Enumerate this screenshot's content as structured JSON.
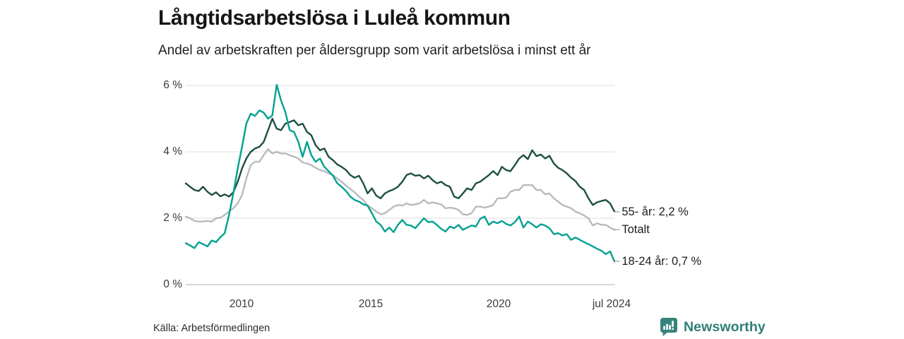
{
  "header": {
    "title": "Långtidsarbetslösa i Luleå kommun",
    "subtitle": "Andel av arbetskraften per åldersgrupp som varit arbetslösa i minst ett år"
  },
  "chart_data": {
    "type": "line",
    "title": "Långtidsarbetslösa i Luleå kommun",
    "subtitle": "Andel av arbetskraften per åldersgrupp som varit arbetslösa i minst ett år",
    "unit": "%",
    "ylim": [
      0,
      6
    ],
    "grid": true,
    "legend_position": "right-of-line-ends",
    "x_ticks": [
      {
        "label": "2010"
      },
      {
        "label": "2015"
      },
      {
        "label": "2020"
      },
      {
        "label": "jul 2024"
      }
    ],
    "y_ticks": [
      {
        "value": 0,
        "label": "0 %"
      },
      {
        "value": 2,
        "label": "2 %"
      },
      {
        "value": 4,
        "label": "4 %"
      },
      {
        "value": 6,
        "label": "6 %"
      }
    ],
    "series": [
      {
        "name": "Totalt",
        "color": "#b7bbbf",
        "end_label": "Totalt",
        "values": [
          2.05,
          2.0,
          1.92,
          1.9,
          1.9,
          1.92,
          1.9,
          2.0,
          2.02,
          2.1,
          2.2,
          2.3,
          2.45,
          2.7,
          3.2,
          3.6,
          3.7,
          3.7,
          3.9,
          4.08,
          3.95,
          4.0,
          3.95,
          3.95,
          3.9,
          3.85,
          3.8,
          3.68,
          3.65,
          3.6,
          3.52,
          3.45,
          3.42,
          3.35,
          3.3,
          3.2,
          3.1,
          2.98,
          2.88,
          2.78,
          2.65,
          2.55,
          2.38,
          2.3,
          2.2,
          2.12,
          2.15,
          2.25,
          2.35,
          2.4,
          2.38,
          2.45,
          2.4,
          2.42,
          2.45,
          2.55,
          2.45,
          2.48,
          2.45,
          2.42,
          2.3,
          2.32,
          2.3,
          2.25,
          2.12,
          2.1,
          2.15,
          2.35,
          2.35,
          2.32,
          2.35,
          2.4,
          2.6,
          2.6,
          2.62,
          2.8,
          2.85,
          2.85,
          3.0,
          3.0,
          3.0,
          2.85,
          2.85,
          2.72,
          2.75,
          2.6,
          2.5,
          2.4,
          2.35,
          2.3,
          2.2,
          2.15,
          2.08,
          2.0,
          1.78,
          1.85,
          1.8,
          1.8,
          1.72,
          1.65
        ]
      },
      {
        "name": "55- år",
        "color": "#1d4f42",
        "end_label": "55- år: 2,2 %",
        "end_value": 2.2,
        "values": [
          3.05,
          2.95,
          2.85,
          2.82,
          2.95,
          2.8,
          2.7,
          2.78,
          2.66,
          2.72,
          2.65,
          2.78,
          3.1,
          3.5,
          3.8,
          4.0,
          4.1,
          4.15,
          4.3,
          4.65,
          5.0,
          4.7,
          4.65,
          4.85,
          4.9,
          4.95,
          4.8,
          4.85,
          4.6,
          4.5,
          4.2,
          4.05,
          4.1,
          3.85,
          3.75,
          3.62,
          3.55,
          3.45,
          3.3,
          3.22,
          3.28,
          3.05,
          2.75,
          2.9,
          2.68,
          2.6,
          2.75,
          2.82,
          2.87,
          2.95,
          3.1,
          3.3,
          3.35,
          3.28,
          3.3,
          3.2,
          3.28,
          3.15,
          3.05,
          3.1,
          3.0,
          2.95,
          2.65,
          2.6,
          2.75,
          2.9,
          2.85,
          3.05,
          3.1,
          3.2,
          3.3,
          3.42,
          3.3,
          3.55,
          3.45,
          3.42,
          3.6,
          3.8,
          3.9,
          3.78,
          4.05,
          3.87,
          3.92,
          3.8,
          3.88,
          3.65,
          3.52,
          3.45,
          3.35,
          3.22,
          3.12,
          2.95,
          2.85,
          2.6,
          2.4,
          2.48,
          2.52,
          2.55,
          2.45,
          2.2
        ]
      },
      {
        "name": "18-24 år",
        "color": "#00a18f",
        "end_label": "18-24 år: 0,7 %",
        "end_value": 0.7,
        "values": [
          1.25,
          1.18,
          1.1,
          1.28,
          1.22,
          1.15,
          1.33,
          1.28,
          1.43,
          1.55,
          2.1,
          2.75,
          3.5,
          4.15,
          4.85,
          5.15,
          5.08,
          5.25,
          5.18,
          5.0,
          5.1,
          6.02,
          5.55,
          5.2,
          4.65,
          4.6,
          4.3,
          3.85,
          4.3,
          3.9,
          3.7,
          3.8,
          3.55,
          3.42,
          3.28,
          3.05,
          2.95,
          2.82,
          2.65,
          2.55,
          2.5,
          2.42,
          2.38,
          2.15,
          1.9,
          1.8,
          1.6,
          1.72,
          1.58,
          1.8,
          1.95,
          1.8,
          1.78,
          1.7,
          1.85,
          2.0,
          1.88,
          1.9,
          1.8,
          1.68,
          1.6,
          1.75,
          1.7,
          1.8,
          1.65,
          1.72,
          1.78,
          1.75,
          1.98,
          2.05,
          1.8,
          1.9,
          1.85,
          1.92,
          1.83,
          1.78,
          1.88,
          2.05,
          1.72,
          1.9,
          1.82,
          1.72,
          1.82,
          1.78,
          1.7,
          1.52,
          1.55,
          1.48,
          1.52,
          1.35,
          1.42,
          1.35,
          1.28,
          1.22,
          1.15,
          1.08,
          1.02,
          0.92,
          1.0,
          0.7
        ]
      }
    ]
  },
  "legend": {
    "dash": "–",
    "entries": [
      {
        "label": "55- år: 2,2 %"
      },
      {
        "label": "Totalt"
      },
      {
        "label": "18-24 år: 0,7 %"
      }
    ]
  },
  "footer": {
    "source": "Källa: Arbetsförmedlingen",
    "brand": "Newsworthy"
  },
  "colors": {
    "series_18_24": "#00a18f",
    "series_55": "#1d4f42",
    "series_total": "#b7bbbf",
    "gridline": "#e9e9e9",
    "baseline": "#cbcbcb",
    "brand_teal": "#2f7e76",
    "title_text": "#151515"
  }
}
